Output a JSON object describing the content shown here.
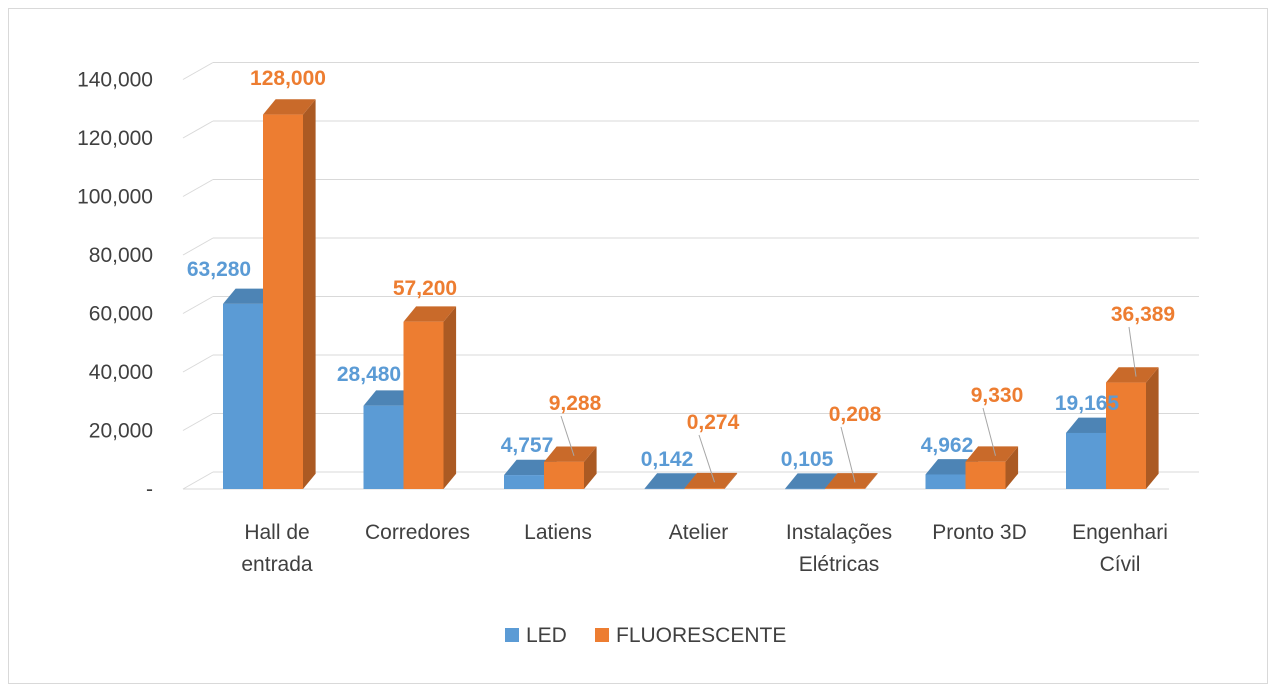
{
  "chart_data": {
    "type": "bar",
    "style": "3d-clustered-column",
    "categories": [
      [
        "Hall de",
        "entrada"
      ],
      [
        "Corredores"
      ],
      [
        "Latiens"
      ],
      [
        "Atelier"
      ],
      [
        "Instalações",
        "Elétricas"
      ],
      [
        "Pronto 3D"
      ],
      [
        "Engenhari",
        "Cívil"
      ]
    ],
    "series": [
      {
        "name": "LED",
        "color": "#5b9bd5",
        "values": [
          63.28,
          28.48,
          4.757,
          0.142,
          0.105,
          4.962,
          19.165
        ],
        "labels": [
          "63,280",
          "28,480",
          "4,757",
          "0,142",
          "0,105",
          "4,962",
          "19,165"
        ]
      },
      {
        "name": "FLUORESCENTE",
        "color": "#ed7d31",
        "values": [
          128.0,
          57.2,
          9.288,
          0.274,
          0.208,
          9.33,
          36.389
        ],
        "labels": [
          "128,000",
          "57,200",
          "9,288",
          "0,274",
          "0,208",
          "9,330",
          "36,389"
        ]
      }
    ],
    "y_ticks": [
      0,
      20,
      40,
      60,
      80,
      100,
      120,
      140
    ],
    "y_tick_labels": [
      "-",
      "20,000",
      "40,000",
      "60,000",
      "80,000",
      "100,000",
      "120,000",
      "140,000"
    ],
    "ylim": [
      0,
      140
    ],
    "grid": true,
    "legend_position": "bottom",
    "title": "",
    "xlabel": "",
    "ylabel": ""
  }
}
